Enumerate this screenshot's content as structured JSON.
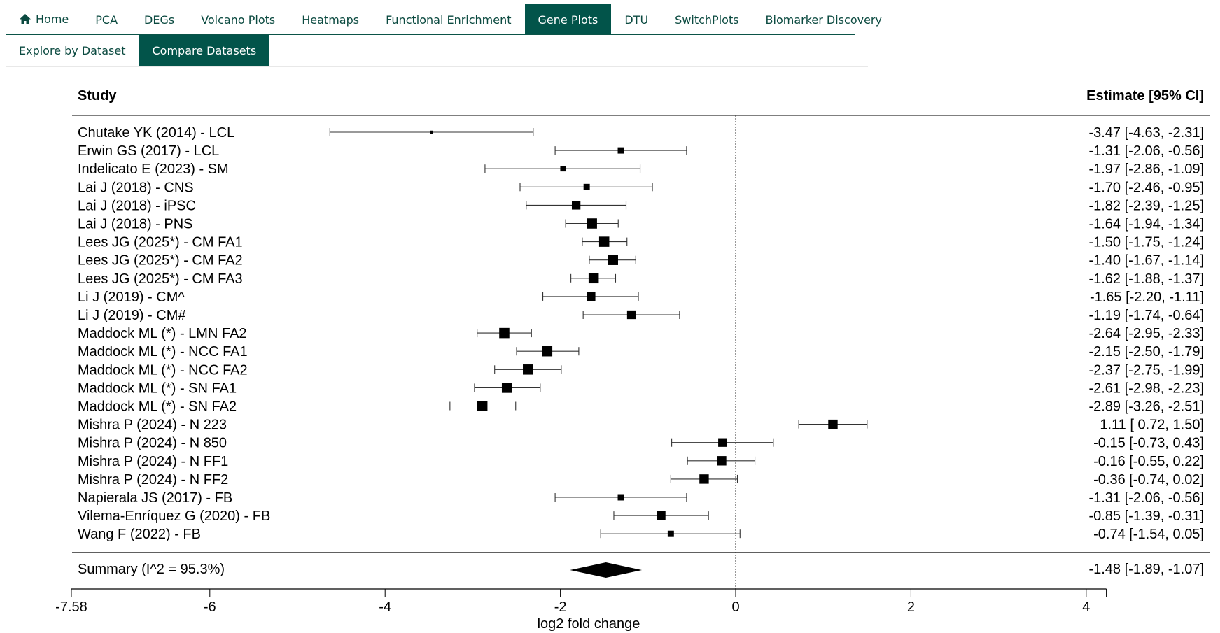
{
  "nav": {
    "tabs": [
      {
        "label": "Home",
        "icon": "home-icon"
      },
      {
        "label": "PCA"
      },
      {
        "label": "DEGs"
      },
      {
        "label": "Volcano Plots"
      },
      {
        "label": "Heatmaps"
      },
      {
        "label": "Functional Enrichment"
      },
      {
        "label": "Gene Plots",
        "active": true
      },
      {
        "label": "DTU"
      },
      {
        "label": "SwitchPlots"
      },
      {
        "label": "Biomarker Discovery"
      }
    ]
  },
  "subnav": {
    "tabs": [
      {
        "label": "Explore by Dataset"
      },
      {
        "label": "Compare Datasets",
        "active": true
      }
    ]
  },
  "colors": {
    "accent": "#02544a"
  },
  "chart_data": {
    "type": "forest",
    "study_header": "Study",
    "estimate_header": "Estimate [95% CI]",
    "xlabel": "log2 fold change",
    "xlim": [
      -7.58,
      4.23
    ],
    "xticks": [
      -7.58,
      -6,
      -4,
      -2,
      0,
      2,
      4
    ],
    "xtick_labels": [
      "-7.58",
      "-6",
      "-4",
      "-2",
      "0",
      "2",
      "4"
    ],
    "reference_line": 0,
    "studies": [
      {
        "label": "Chutake YK (2014) - LCL",
        "est": -3.47,
        "lo": -4.63,
        "hi": -2.31,
        "text": "-3.47 [-4.63, -2.31]",
        "weight": 4
      },
      {
        "label": "Erwin GS (2017) - LCL",
        "est": -1.31,
        "lo": -2.06,
        "hi": -0.56,
        "text": "-1.31 [-2.06, -0.56]",
        "weight": 8
      },
      {
        "label": "Indelicato E (2023) - SM",
        "est": -1.97,
        "lo": -2.86,
        "hi": -1.09,
        "text": "-1.97 [-2.86, -1.09]",
        "weight": 7
      },
      {
        "label": "Lai J (2018) - CNS",
        "est": -1.7,
        "lo": -2.46,
        "hi": -0.95,
        "text": "-1.70 [-2.46, -0.95]",
        "weight": 8
      },
      {
        "label": "Lai J (2018) - iPSC",
        "est": -1.82,
        "lo": -2.39,
        "hi": -1.25,
        "text": "-1.82 [-2.39, -1.25]",
        "weight": 11
      },
      {
        "label": "Lai J (2018) - PNS",
        "est": -1.64,
        "lo": -1.94,
        "hi": -1.34,
        "text": "-1.64 [-1.94, -1.34]",
        "weight": 13
      },
      {
        "label": "Lees JG (2025*) - CM FA1",
        "est": -1.5,
        "lo": -1.75,
        "hi": -1.24,
        "text": "-1.50 [-1.75, -1.24]",
        "weight": 13
      },
      {
        "label": "Lees JG (2025*) - CM FA2",
        "est": -1.4,
        "lo": -1.67,
        "hi": -1.14,
        "text": "-1.40 [-1.67, -1.14]",
        "weight": 13
      },
      {
        "label": "Lees JG (2025*) - CM FA3",
        "est": -1.62,
        "lo": -1.88,
        "hi": -1.37,
        "text": "-1.62 [-1.88, -1.37]",
        "weight": 13
      },
      {
        "label": "Li J (2019) - CM^",
        "est": -1.65,
        "lo": -2.2,
        "hi": -1.11,
        "text": "-1.65 [-2.20, -1.11]",
        "weight": 11
      },
      {
        "label": "Li J (2019) - CM#",
        "est": -1.19,
        "lo": -1.74,
        "hi": -0.64,
        "text": "-1.19 [-1.74, -0.64]",
        "weight": 11
      },
      {
        "label": "Maddock ML (*) - LMN FA2",
        "est": -2.64,
        "lo": -2.95,
        "hi": -2.33,
        "text": "-2.64 [-2.95, -2.33]",
        "weight": 13
      },
      {
        "label": "Maddock ML (*) - NCC FA1",
        "est": -2.15,
        "lo": -2.5,
        "hi": -1.79,
        "text": "-2.15 [-2.50, -1.79]",
        "weight": 13
      },
      {
        "label": "Maddock ML (*) - NCC FA2",
        "est": -2.37,
        "lo": -2.75,
        "hi": -1.99,
        "text": "-2.37 [-2.75, -1.99]",
        "weight": 13
      },
      {
        "label": "Maddock ML (*) - SN FA1",
        "est": -2.61,
        "lo": -2.98,
        "hi": -2.23,
        "text": "-2.61 [-2.98, -2.23]",
        "weight": 13
      },
      {
        "label": "Maddock ML (*) - SN FA2",
        "est": -2.89,
        "lo": -3.26,
        "hi": -2.51,
        "text": "-2.89 [-3.26, -2.51]",
        "weight": 13
      },
      {
        "label": "Mishra P (2024) - N 223",
        "est": 1.11,
        "lo": 0.72,
        "hi": 1.5,
        "text": " 1.11 [ 0.72,  1.50]",
        "weight": 12
      },
      {
        "label": "Mishra P (2024) - N 850",
        "est": -0.15,
        "lo": -0.73,
        "hi": 0.43,
        "text": "-0.15 [-0.73,  0.43]",
        "weight": 11
      },
      {
        "label": "Mishra P (2024) - N FF1",
        "est": -0.16,
        "lo": -0.55,
        "hi": 0.22,
        "text": "-0.16 [-0.55,  0.22]",
        "weight": 12
      },
      {
        "label": "Mishra P (2024) - N FF2",
        "est": -0.36,
        "lo": -0.74,
        "hi": 0.02,
        "text": "-0.36 [-0.74,  0.02]",
        "weight": 12
      },
      {
        "label": "Napierala JS (2017) - FB",
        "est": -1.31,
        "lo": -2.06,
        "hi": -0.56,
        "text": "-1.31 [-2.06, -0.56]",
        "weight": 8
      },
      {
        "label": "Vilema-Enríquez G (2020) - FB",
        "est": -0.85,
        "lo": -1.39,
        "hi": -0.31,
        "text": "-0.85 [-1.39, -0.31]",
        "weight": 11
      },
      {
        "label": "Wang F (2022) - FB",
        "est": -0.74,
        "lo": -1.54,
        "hi": 0.05,
        "text": "-0.74 [-1.54,  0.05]",
        "weight": 8
      }
    ],
    "summary": {
      "label": "Summary (I^2 = 95.3%)",
      "est": -1.48,
      "lo": -1.89,
      "hi": -1.07,
      "text": "-1.48 [-1.89, -1.07]"
    }
  }
}
